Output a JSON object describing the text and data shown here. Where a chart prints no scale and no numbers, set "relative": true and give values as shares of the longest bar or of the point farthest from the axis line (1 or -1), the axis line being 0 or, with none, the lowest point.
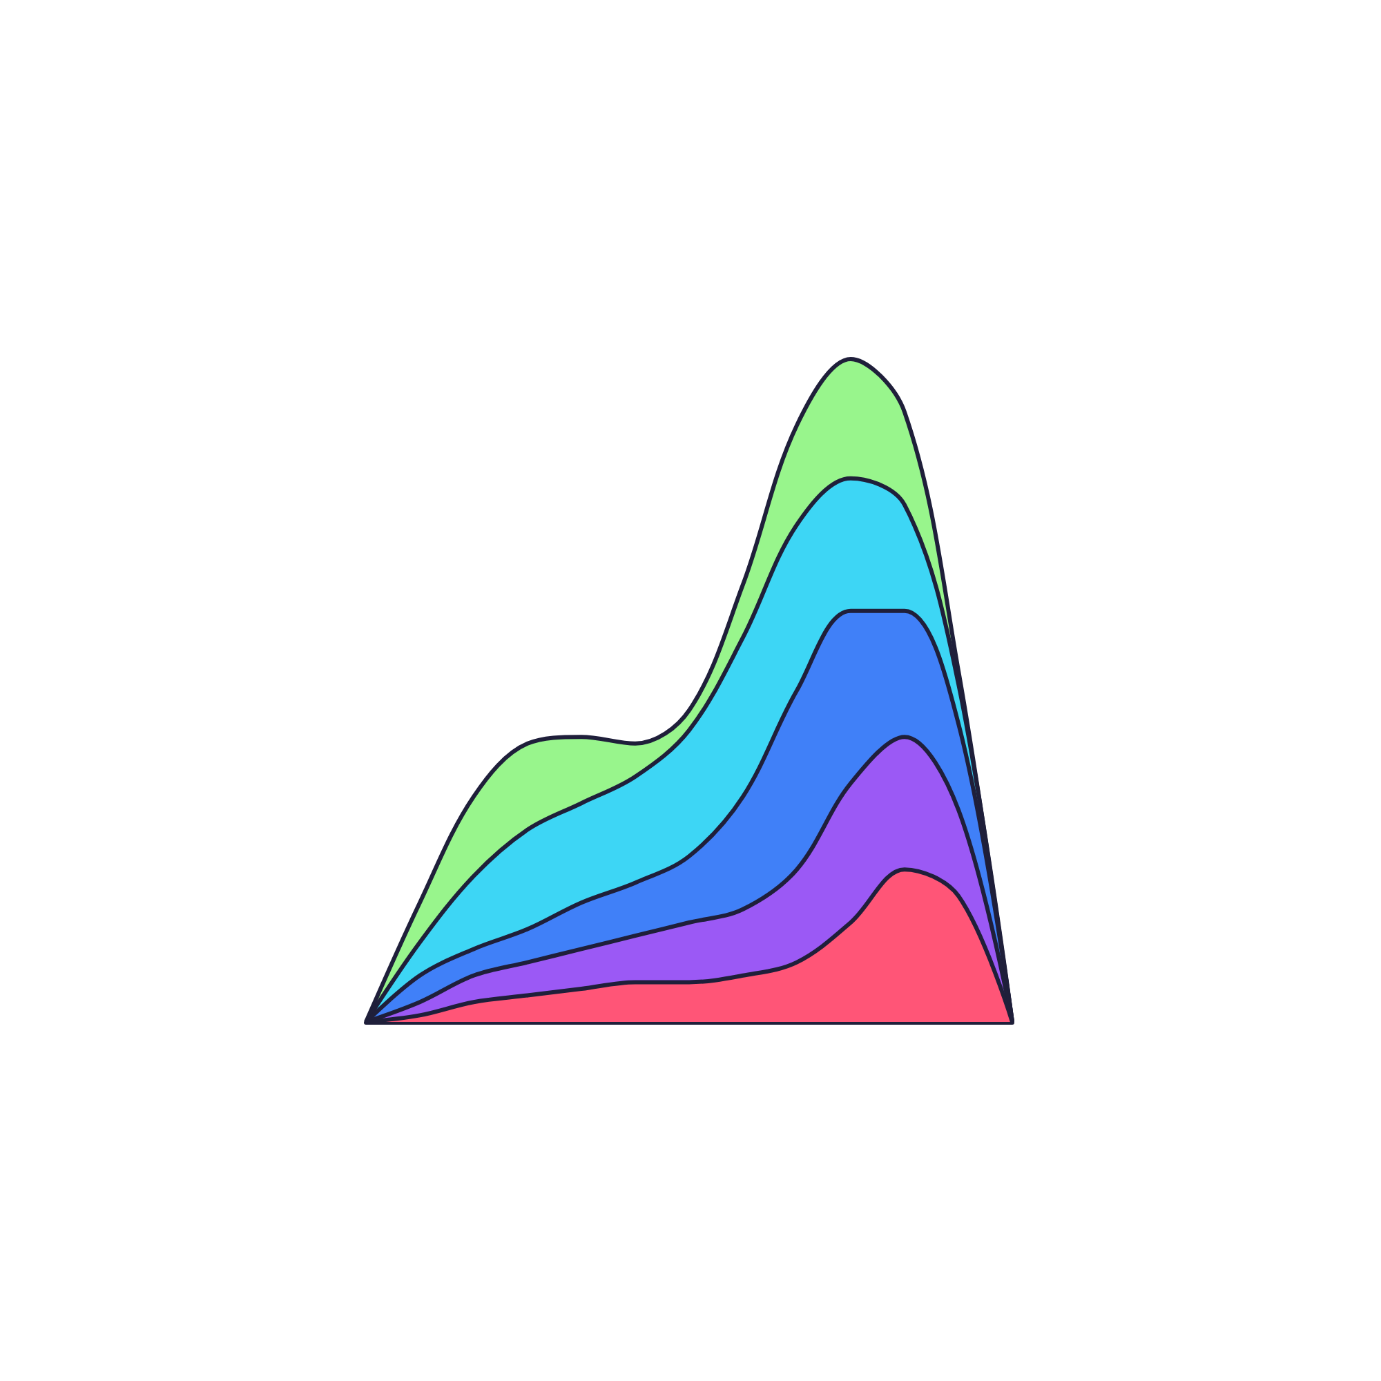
{
  "chart_data": {
    "type": "area",
    "stacked": true,
    "relative": true,
    "categories": [
      null,
      null,
      null,
      null,
      null,
      null,
      null,
      null,
      null,
      null,
      null,
      null,
      null
    ],
    "series": [
      {
        "color": "#ff5577",
        "values": [
          0,
          0.01,
          0.03,
          0.04,
          0.05,
          0.06,
          0.06,
          0.07,
          0.09,
          0.15,
          0.23,
          0.19,
          0
        ]
      },
      {
        "color": "#9b59f5",
        "values": [
          0,
          0.02,
          0.04,
          0.05,
          0.06,
          0.07,
          0.09,
          0.1,
          0.14,
          0.21,
          0.2,
          0.13,
          0
        ]
      },
      {
        "color": "#4080f8",
        "values": [
          0,
          0.04,
          0.04,
          0.05,
          0.07,
          0.08,
          0.1,
          0.17,
          0.27,
          0.26,
          0.19,
          0.13,
          0
        ]
      },
      {
        "color": "#3dd6f5",
        "values": [
          0,
          0.05,
          0.11,
          0.15,
          0.15,
          0.16,
          0.19,
          0.24,
          0.25,
          0.2,
          0.16,
          0.06,
          0
        ]
      },
      {
        "color": "#98f58c",
        "values": [
          0,
          0.06,
          0.12,
          0.13,
          0.1,
          0.05,
          0.03,
          0.08,
          0.15,
          0.18,
          0.14,
          0.02,
          0
        ]
      }
    ]
  }
}
